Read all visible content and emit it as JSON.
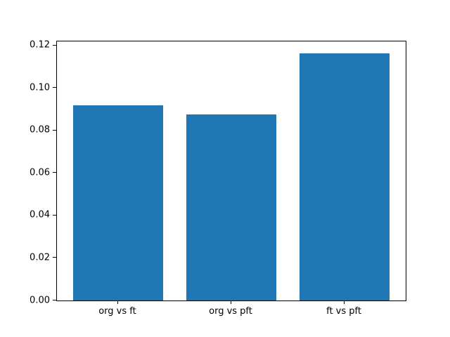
{
  "chart_data": {
    "type": "bar",
    "categories": [
      "org vs ft",
      "org vs pft",
      "ft vs pft"
    ],
    "values": [
      0.0918,
      0.0875,
      0.1162
    ],
    "title": "",
    "xlabel": "",
    "ylabel": "",
    "ylim": [
      0,
      0.1219
    ],
    "xlim": [
      -0.54,
      2.54
    ],
    "bar_width": 0.8,
    "bar_positions": [
      0,
      1,
      2
    ],
    "yticks": [
      0.0,
      0.02,
      0.04,
      0.06,
      0.08,
      0.1,
      0.12
    ],
    "ytick_labels": [
      "0.00",
      "0.02",
      "0.04",
      "0.06",
      "0.08",
      "0.10",
      "0.12"
    ],
    "bar_color": "#1f77b4",
    "axis_color": "#000000",
    "background_color": "#ffffff",
    "grid": false,
    "legend": null
  }
}
